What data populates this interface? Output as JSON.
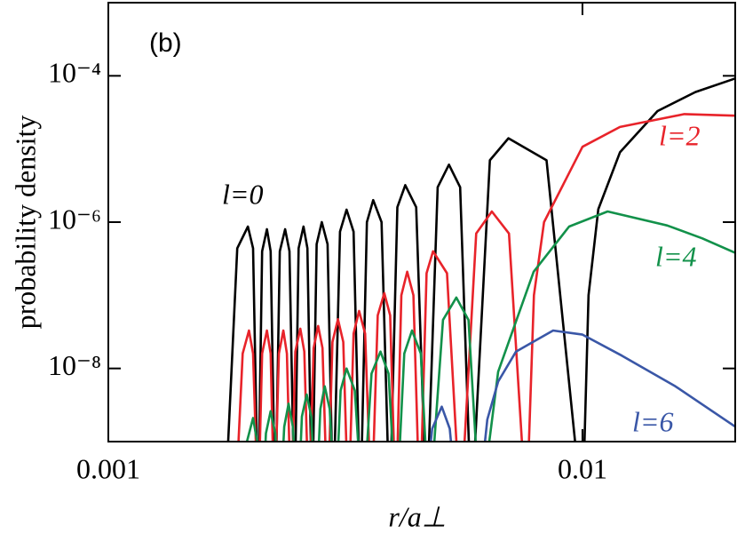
{
  "chart_data": {
    "type": "line",
    "panel_label": "(b)",
    "ylabel": "probability density",
    "xlabel": "r/a⊥",
    "xscale": "log",
    "yscale": "log",
    "xlim": [
      0.001,
      0.021
    ],
    "xticks": [
      0.001,
      0.01
    ],
    "ylim": [
      1e-09,
      0.001
    ],
    "yticks": [
      {
        "value": 0.0001,
        "label": "10⁻⁴"
      },
      {
        "value": 1e-06,
        "label": "10⁻⁶"
      },
      {
        "value": 1e-08,
        "label": "10⁻⁸"
      }
    ],
    "series": [
      {
        "name": "l=0",
        "color": "#000000",
        "x": [
          0.00176,
          0.00187,
          0.00197,
          0.00202,
          0.00207,
          0.00211,
          0.00216,
          0.0022,
          0.00225,
          0.0023,
          0.00236,
          0.00241,
          0.00247,
          0.00252,
          0.00258,
          0.00263,
          0.00269,
          0.00275,
          0.00282,
          0.0029,
          0.00298,
          0.00308,
          0.00318,
          0.00329,
          0.0034,
          0.00351,
          0.00362,
          0.00377,
          0.00392,
          0.00407,
          0.00423,
          0.00446,
          0.00469,
          0.00495,
          0.00523,
          0.00552,
          0.00583,
          0.00638,
          0.00698,
          0.0084,
          0.01,
          0.0103,
          0.0108,
          0.012,
          0.0144,
          0.0173,
          0.021
        ],
        "values": [
          1e-10,
          4.4e-07,
          8.7e-07,
          4.4e-07,
          1e-10,
          4e-07,
          8e-07,
          4e-07,
          1e-10,
          4e-07,
          8e-07,
          4e-07,
          1e-10,
          4.4e-07,
          8.7e-07,
          4.4e-07,
          1e-10,
          5e-07,
          1e-06,
          5e-07,
          1e-10,
          7.4e-07,
          1.48e-06,
          7.4e-07,
          1e-10,
          1e-06,
          2e-06,
          1e-06,
          1e-10,
          1.6e-06,
          3.2e-06,
          1.6e-06,
          1e-10,
          3e-06,
          6.1e-06,
          3e-06,
          1e-10,
          7e-06,
          1.4e-05,
          7e-06,
          1e-10,
          1e-07,
          1.5e-06,
          9e-06,
          3.3e-05,
          6e-05,
          9.2e-05
        ]
      },
      {
        "name": "l=2",
        "color": "#e8232a",
        "x": [
          0.00185,
          0.00192,
          0.00198,
          0.00202,
          0.00207,
          0.00211,
          0.00216,
          0.0022,
          0.00224,
          0.00229,
          0.00234,
          0.00238,
          0.00243,
          0.00248,
          0.00254,
          0.00259,
          0.00265,
          0.00271,
          0.00277,
          0.00283,
          0.0029,
          0.00297,
          0.00305,
          0.00313,
          0.00321,
          0.00329,
          0.00338,
          0.00348,
          0.00359,
          0.0037,
          0.00382,
          0.00393,
          0.00404,
          0.00415,
          0.00427,
          0.0044,
          0.00454,
          0.00469,
          0.00484,
          0.00518,
          0.00553,
          0.00597,
          0.00644,
          0.007,
          0.00762,
          0.0079,
          0.0083,
          0.01,
          0.012,
          0.0164,
          0.021
        ],
        "values": [
          1e-10,
          1.6e-08,
          3.3e-08,
          1.6e-08,
          1e-10,
          1.6e-08,
          3.3e-08,
          1.6e-08,
          1e-10,
          1.6e-08,
          3.3e-08,
          1.6e-08,
          1e-10,
          1.7e-08,
          3.5e-08,
          1.7e-08,
          1e-10,
          1.9e-08,
          3.8e-08,
          1.9e-08,
          1e-10,
          2.3e-08,
          4.7e-08,
          2.3e-08,
          1e-10,
          3e-08,
          6.1e-08,
          3e-08,
          1e-10,
          5.3e-08,
          1.07e-07,
          5.3e-08,
          1e-10,
          1e-07,
          2.1e-07,
          1e-07,
          1e-10,
          2e-07,
          4e-07,
          2e-07,
          1e-10,
          7e-07,
          1.4e-06,
          7e-07,
          1e-10,
          1e-07,
          1e-06,
          1.07e-05,
          2e-05,
          3e-05,
          2.85e-05
        ]
      },
      {
        "name": "l=4",
        "color": "#12914a",
        "x": [
          0.00191,
          0.00196,
          0.00202,
          0.00206,
          0.00211,
          0.00215,
          0.0022,
          0.00225,
          0.0023,
          0.00235,
          0.0024,
          0.00245,
          0.00251,
          0.00256,
          0.00262,
          0.00268,
          0.00274,
          0.0028,
          0.00286,
          0.00293,
          0.00301,
          0.00309,
          0.00318,
          0.00331,
          0.00344,
          0.00359,
          0.00375,
          0.0039,
          0.00405,
          0.00421,
          0.00437,
          0.00456,
          0.00475,
          0.00508,
          0.00542,
          0.00575,
          0.00608,
          0.00664,
          0.00789,
          0.00937,
          0.0113,
          0.0151,
          0.0179,
          0.021
        ],
        "values": [
          1e-10,
          1e-09,
          2.1e-09,
          1e-09,
          1e-10,
          1.3e-09,
          2.6e-09,
          1.3e-09,
          1e-10,
          1.6e-09,
          3.3e-09,
          1.6e-09,
          1e-10,
          2.2e-09,
          4.4e-09,
          2.2e-09,
          1e-10,
          2.8e-09,
          5.7e-09,
          2.8e-09,
          1e-10,
          5e-09,
          1e-08,
          5e-09,
          1e-10,
          8.5e-09,
          1.7e-08,
          8.5e-09,
          1e-10,
          1.6e-08,
          3.3e-08,
          1.6e-08,
          1e-10,
          4.6e-08,
          9.3e-08,
          4.6e-08,
          1e-10,
          9e-09,
          2.1e-07,
          8.7e-07,
          1.4e-06,
          9e-07,
          6e-07,
          3.8e-07
        ]
      },
      {
        "name": "l=6",
        "color": "#3a57a7",
        "x": [
          0.00461,
          0.00482,
          0.00505,
          0.00525,
          0.00546,
          0.006,
          0.0063,
          0.00664,
          0.00724,
          0.00867,
          0.01,
          0.0121,
          0.0157,
          0.021
        ],
        "values": [
          1e-10,
          1.5e-09,
          3e-09,
          1.5e-09,
          1e-10,
          1e-10,
          2e-09,
          6.6e-09,
          1.7e-08,
          3.3e-08,
          2.9e-08,
          1.5e-08,
          5.7e-09,
          1.6e-09
        ]
      }
    ]
  }
}
